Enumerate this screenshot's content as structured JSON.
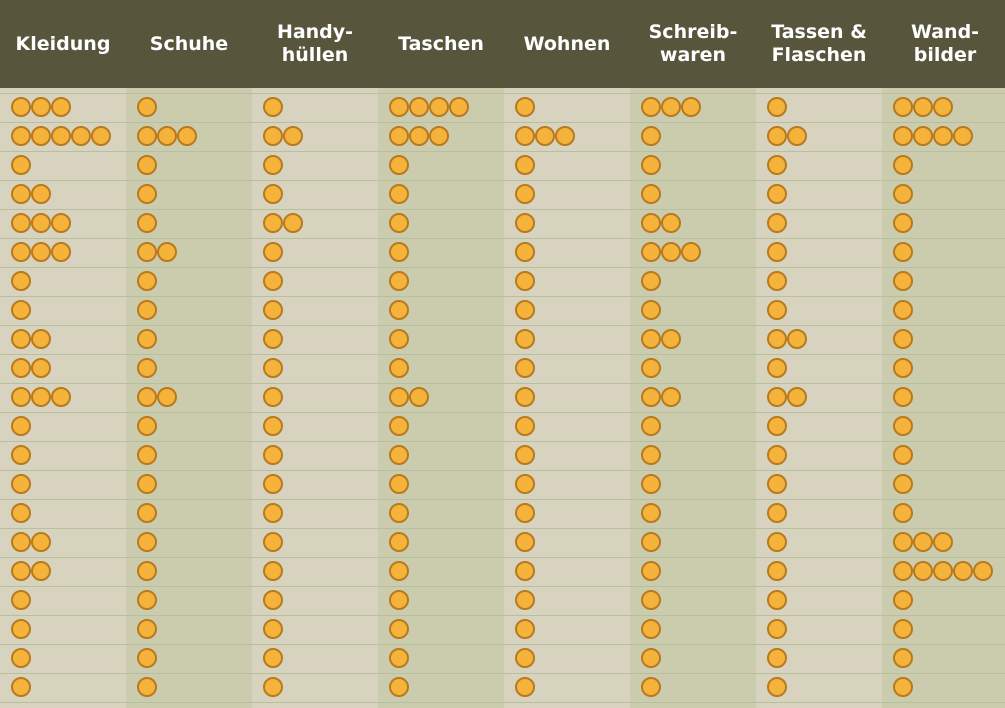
{
  "chart_data": {
    "type": "table",
    "columns": [
      "Kleidung",
      "Schuhe",
      "Handy-\nhüllen",
      "Taschen",
      "Wohnen",
      "Schreib-\nwaren",
      "Tassen &\nFlaschen",
      "Wand-\nbilder"
    ],
    "values": [
      [
        3,
        5,
        1,
        2,
        3,
        3,
        1,
        1,
        2,
        2,
        3,
        1,
        1,
        1,
        1,
        2,
        2,
        1,
        1,
        1,
        1
      ],
      [
        1,
        3,
        1,
        1,
        1,
        2,
        1,
        1,
        1,
        1,
        2,
        1,
        1,
        1,
        1,
        1,
        1,
        1,
        1,
        1,
        1
      ],
      [
        1,
        2,
        1,
        1,
        2,
        1,
        1,
        1,
        1,
        1,
        1,
        1,
        1,
        1,
        1,
        1,
        1,
        1,
        1,
        1,
        1
      ],
      [
        4,
        3,
        1,
        1,
        1,
        1,
        1,
        1,
        1,
        1,
        2,
        1,
        1,
        1,
        1,
        1,
        1,
        1,
        1,
        1,
        1
      ],
      [
        1,
        3,
        1,
        1,
        1,
        1,
        1,
        1,
        1,
        1,
        1,
        1,
        1,
        1,
        1,
        1,
        1,
        1,
        1,
        1,
        1
      ],
      [
        3,
        1,
        1,
        1,
        2,
        3,
        1,
        1,
        2,
        1,
        2,
        1,
        1,
        1,
        1,
        1,
        1,
        1,
        1,
        1,
        1
      ],
      [
        1,
        2,
        1,
        1,
        1,
        1,
        1,
        1,
        2,
        1,
        2,
        1,
        1,
        1,
        1,
        1,
        1,
        1,
        1,
        1,
        1
      ],
      [
        3,
        4,
        1,
        1,
        1,
        1,
        1,
        1,
        1,
        1,
        1,
        1,
        1,
        1,
        1,
        3,
        5,
        1,
        1,
        1,
        1
      ]
    ],
    "colors": {
      "header_bg": "#57553c",
      "header_text": "#ffffff",
      "column_bg_a": "#d7d3bf",
      "column_bg_b": "#cbccad",
      "row_line": "#b7bf9c",
      "dot_fill": "#f6b33c",
      "dot_stroke": "#b77a1e"
    }
  }
}
